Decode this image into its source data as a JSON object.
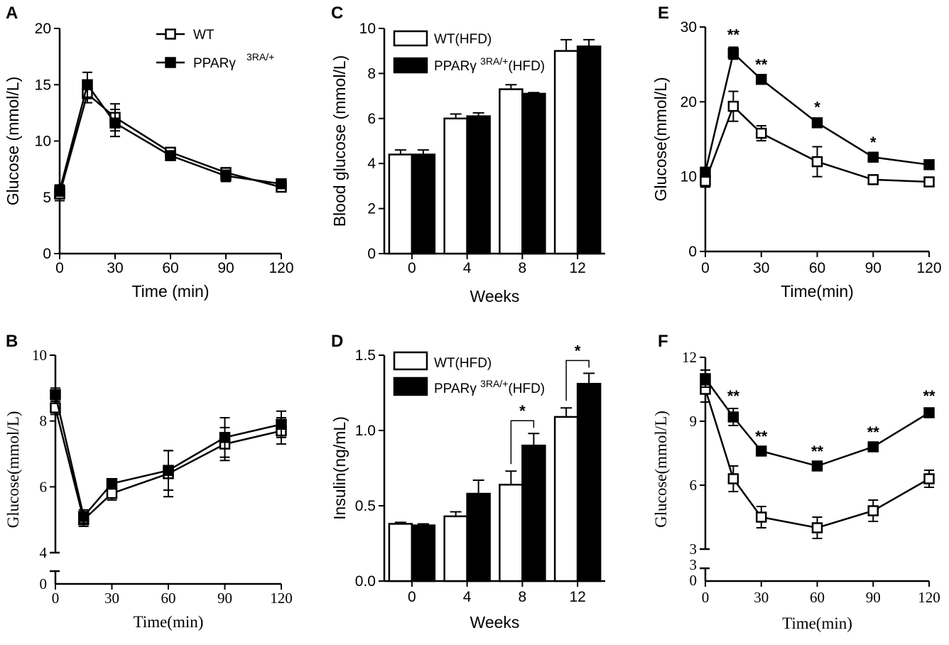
{
  "colors": {
    "ink": "#000000",
    "paper": "#ffffff",
    "wt_fill": "#ffffff",
    "mut_fill": "#000000"
  },
  "chart_data": [
    {
      "id": "A",
      "type": "line",
      "title": "",
      "xlabel": "Time (min)",
      "ylabel": "Glucose (mmol/L)",
      "x": [
        0,
        15,
        30,
        60,
        90,
        120
      ],
      "xticks": [
        "0",
        "30",
        "60",
        "90",
        "120"
      ],
      "yticks": [
        "0",
        "5",
        "10",
        "15",
        "20"
      ],
      "xlim": [
        0,
        120
      ],
      "ylim": [
        0,
        20
      ],
      "legend": {
        "position": "top-center",
        "entries": [
          {
            "name": "WT",
            "sup": ""
          },
          {
            "name": "PPARγ",
            "sup": "3RA/+"
          }
        ]
      },
      "series": [
        {
          "name": "WT",
          "marker": "open-square",
          "values": [
            5.3,
            14.2,
            12.1,
            9.0,
            7.2,
            5.9
          ],
          "errors": [
            0.6,
            0.8,
            1.2,
            0.3,
            0.4,
            0.4
          ]
        },
        {
          "name": "PPARγ 3RA/+",
          "marker": "filled-square",
          "values": [
            5.6,
            15.0,
            11.6,
            8.7,
            6.9,
            6.2
          ],
          "errors": [
            0.5,
            1.1,
            1.2,
            0.3,
            0.5,
            0.4
          ]
        }
      ]
    },
    {
      "id": "B",
      "type": "line",
      "title": "",
      "xlabel": "Time(min)",
      "ylabel": "Glucose(mmol/L)",
      "x": [
        0,
        15,
        30,
        60,
        90,
        120
      ],
      "xticks": [
        "0",
        "30",
        "60",
        "90",
        "120"
      ],
      "yticks": [
        "4",
        "6",
        "8",
        "10"
      ],
      "ybreak_label": "0",
      "xlim": [
        0,
        120
      ],
      "ylim": [
        4,
        10
      ],
      "series": [
        {
          "name": "WT",
          "marker": "open-square",
          "values": [
            8.4,
            5.0,
            5.8,
            6.4,
            7.3,
            7.7
          ],
          "errors": [
            0.2,
            0.2,
            0.2,
            0.7,
            0.5,
            0.4
          ]
        },
        {
          "name": "PPARγ 3RA/+",
          "marker": "filled-square",
          "values": [
            8.8,
            5.1,
            6.1,
            6.5,
            7.5,
            7.9
          ],
          "errors": [
            0.2,
            0.2,
            0.1,
            0.6,
            0.6,
            0.4
          ]
        }
      ]
    },
    {
      "id": "C",
      "type": "bar",
      "title": "",
      "xlabel": "Weeks",
      "ylabel": "Blood glucose (mmol/L)",
      "categories": [
        "0",
        "4",
        "8",
        "12"
      ],
      "yticks": [
        "0",
        "2",
        "4",
        "6",
        "8",
        "10"
      ],
      "ylim": [
        0,
        10
      ],
      "legend": {
        "position": "top-left",
        "entries": [
          {
            "name": "WT(HFD)",
            "pre": "",
            "sup": "",
            "post": ""
          },
          {
            "name": "",
            "pre": "PPARγ ",
            "sup": "3RA/+",
            "post": "(HFD)"
          }
        ]
      },
      "series": [
        {
          "name": "WT(HFD)",
          "fill": "open",
          "values": [
            4.4,
            6.0,
            7.3,
            9.0
          ],
          "errors": [
            0.2,
            0.2,
            0.2,
            0.5
          ]
        },
        {
          "name": "PPARγ 3RA/+(HFD)",
          "fill": "solid",
          "values": [
            4.4,
            6.1,
            7.1,
            9.2
          ],
          "errors": [
            0.2,
            0.15,
            0.05,
            0.3
          ]
        }
      ]
    },
    {
      "id": "D",
      "type": "bar",
      "title": "",
      "xlabel": "Weeks",
      "ylabel": "Insulin(ng/mL)",
      "categories": [
        "0",
        "4",
        "8",
        "12"
      ],
      "yticks": [
        "0.0",
        "0.5",
        "1.0",
        "1.5"
      ],
      "ylim": [
        0,
        1.5
      ],
      "legend": {
        "position": "top-left",
        "entries": [
          {
            "name": "WT(HFD)",
            "pre": "",
            "sup": "",
            "post": ""
          },
          {
            "name": "",
            "pre": "PPARγ ",
            "sup": "3RA/+",
            "post": "(HFD)"
          }
        ]
      },
      "series": [
        {
          "name": "WT(HFD)",
          "fill": "open",
          "values": [
            0.38,
            0.43,
            0.64,
            1.09
          ],
          "errors": [
            0.01,
            0.03,
            0.09,
            0.06
          ]
        },
        {
          "name": "PPARγ 3RA/+(HFD)",
          "fill": "solid",
          "values": [
            0.37,
            0.58,
            0.9,
            1.31
          ],
          "errors": [
            0.01,
            0.09,
            0.08,
            0.07
          ]
        }
      ],
      "significance": [
        {
          "category": "8",
          "label": "*"
        },
        {
          "category": "12",
          "label": "*"
        }
      ]
    },
    {
      "id": "E",
      "type": "line",
      "title": "",
      "xlabel": "Time(min)",
      "ylabel": "Glucose(mmol/L)",
      "x": [
        0,
        15,
        30,
        60,
        90,
        120
      ],
      "xticks": [
        "0",
        "30",
        "60",
        "90",
        "120"
      ],
      "yticks": [
        "0",
        "10",
        "20",
        "30"
      ],
      "xlim": [
        0,
        120
      ],
      "ylim": [
        0,
        30
      ],
      "series": [
        {
          "name": "WT",
          "marker": "open-square",
          "values": [
            9.4,
            19.4,
            15.8,
            12.0,
            9.6,
            9.3
          ],
          "errors": [
            0.8,
            2.0,
            1.0,
            2.0,
            0.6,
            0.6
          ]
        },
        {
          "name": "PPARγ 3RA/+",
          "marker": "filled-square",
          "values": [
            10.6,
            26.5,
            23.0,
            17.2,
            12.6,
            11.6
          ],
          "errors": [
            0.6,
            0.8,
            0.3,
            0.4,
            0.3,
            0.3
          ]
        }
      ],
      "significance": [
        {
          "x": 15,
          "label": "**"
        },
        {
          "x": 30,
          "label": "**"
        },
        {
          "x": 60,
          "label": "*"
        },
        {
          "x": 90,
          "label": "*"
        }
      ]
    },
    {
      "id": "F",
      "type": "line",
      "title": "",
      "xlabel": "Time(min)",
      "ylabel": "Glucose(mmol/L)",
      "x": [
        0,
        15,
        30,
        60,
        90,
        120
      ],
      "xticks": [
        "0",
        "30",
        "60",
        "90",
        "120"
      ],
      "yticks": [
        "3",
        "6",
        "9",
        "12"
      ],
      "ybreak_labels": [
        "3",
        "0"
      ],
      "xlim": [
        0,
        120
      ],
      "ylim": [
        3,
        12
      ],
      "series": [
        {
          "name": "WT",
          "marker": "open-square",
          "values": [
            10.5,
            6.3,
            4.5,
            4.0,
            4.8,
            6.3
          ],
          "errors": [
            0.6,
            0.6,
            0.5,
            0.5,
            0.5,
            0.4
          ]
        },
        {
          "name": "PPARγ 3RA/+",
          "marker": "filled-square",
          "values": [
            11.0,
            9.2,
            7.6,
            6.9,
            7.8,
            9.4
          ],
          "errors": [
            0.4,
            0.4,
            0.1,
            0.1,
            0.1,
            0.2
          ]
        }
      ],
      "significance": [
        {
          "x": 15,
          "label": "**"
        },
        {
          "x": 30,
          "label": "**"
        },
        {
          "x": 60,
          "label": "**"
        },
        {
          "x": 90,
          "label": "**"
        },
        {
          "x": 120,
          "label": "**"
        }
      ]
    }
  ]
}
